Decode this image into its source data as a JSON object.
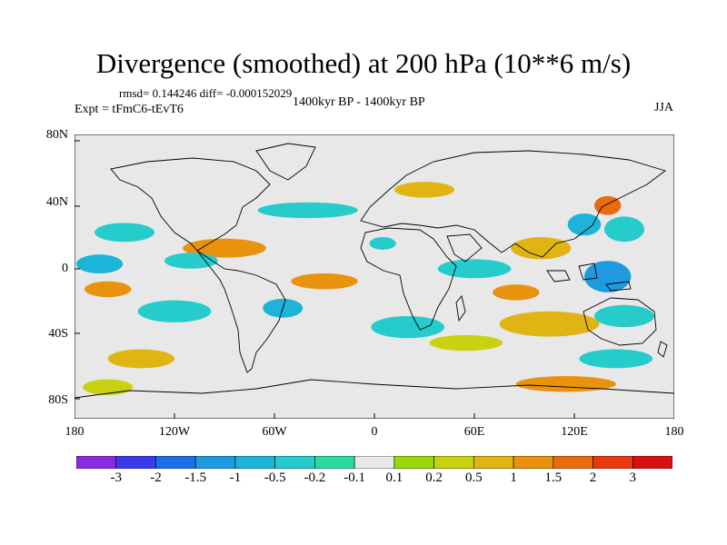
{
  "title": "Divergence (smoothed) at 200 hPa (10**6 m/s)",
  "stats": "rmsd= 0.144246  diff= -0.000152029",
  "experiment": "Expt = tFmC6-tEvT6",
  "period": "1400kyr BP - 1400kyr BP",
  "season": "JJA",
  "lat_labels": [
    "80N",
    "40N",
    "0",
    "40S",
    "80S"
  ],
  "lon_labels": [
    "180",
    "120W",
    "60W",
    "0",
    "60E",
    "120E",
    "180"
  ],
  "colorbar": {
    "labels": [
      "-3",
      "-2",
      "-1.5",
      "-1",
      "-0.5",
      "-0.2",
      "-0.1",
      "0.1",
      "0.2",
      "0.5",
      "1",
      "1.5",
      "2",
      "3"
    ],
    "colors": [
      "#8a2be2",
      "#3a3ae8",
      "#1a6fe8",
      "#1e9ae0",
      "#1cb4d8",
      "#26cbcb",
      "#2bd9a3",
      "#e8e8e8",
      "#9ad60e",
      "#c8d210",
      "#e0b412",
      "#e8920e",
      "#ea6a10",
      "#e83a10",
      "#d81010"
    ]
  },
  "chart_data": {
    "type": "heatmap",
    "variable": "Divergence (smoothed) at 200 hPa",
    "units": "10**6 m/s",
    "projection": "cylindrical equidistant",
    "lon_range": [
      -180,
      180
    ],
    "lat_range": [
      -90,
      90
    ],
    "lon_ticks": [
      -180,
      -120,
      -60,
      0,
      60,
      120,
      180
    ],
    "lat_ticks": [
      80,
      40,
      0,
      -40,
      -80
    ],
    "levels": [
      -3,
      -2,
      -1.5,
      -1,
      -0.5,
      -0.2,
      -0.1,
      0.1,
      0.2,
      0.5,
      1,
      1.5,
      2,
      3
    ],
    "background": "#e8e8e8",
    "features": [
      {
        "lon": 5,
        "lat": 21,
        "rlon": 8,
        "rlat": 4,
        "value": -0.5
      },
      {
        "lon": 140,
        "lat": 0,
        "rlon": 14,
        "rlat": 10,
        "value": -1.5
      },
      {
        "lon": 126,
        "lat": 33,
        "rlon": 10,
        "rlat": 7,
        "value": -1
      },
      {
        "lon": 140,
        "lat": 45,
        "rlon": 8,
        "rlat": 6,
        "value": 1.5
      },
      {
        "lon": 150,
        "lat": 30,
        "rlon": 12,
        "rlat": 8,
        "value": -0.5
      },
      {
        "lon": 100,
        "lat": 18,
        "rlon": 18,
        "rlat": 7,
        "value": 0.5
      },
      {
        "lon": 60,
        "lat": 5,
        "rlon": 22,
        "rlat": 6,
        "value": -0.5
      },
      {
        "lon": 85,
        "lat": -10,
        "rlon": 14,
        "rlat": 5,
        "value": 1
      },
      {
        "lon": -30,
        "lat": -3,
        "rlon": 20,
        "rlat": 5,
        "value": 1
      },
      {
        "lon": -90,
        "lat": 18,
        "rlon": 25,
        "rlat": 6,
        "value": 1
      },
      {
        "lon": -160,
        "lat": -8,
        "rlon": 14,
        "rlat": 5,
        "value": 1
      },
      {
        "lon": -150,
        "lat": 28,
        "rlon": 18,
        "rlat": 6,
        "value": -0.5
      },
      {
        "lon": -110,
        "lat": 10,
        "rlon": 16,
        "rlat": 5,
        "value": -0.5
      },
      {
        "lon": -165,
        "lat": 8,
        "rlon": 14,
        "rlat": 6,
        "value": -1
      },
      {
        "lon": -120,
        "lat": -22,
        "rlon": 22,
        "rlat": 7,
        "value": -0.5
      },
      {
        "lon": -55,
        "lat": -20,
        "rlon": 12,
        "rlat": 6,
        "value": -1
      },
      {
        "lon": 20,
        "lat": -32,
        "rlon": 22,
        "rlat": 7,
        "value": -0.5
      },
      {
        "lon": 105,
        "lat": -30,
        "rlon": 30,
        "rlat": 8,
        "value": 0.5
      },
      {
        "lon": 150,
        "lat": -25,
        "rlon": 18,
        "rlat": 7,
        "value": -0.5
      },
      {
        "lon": 55,
        "lat": -42,
        "rlon": 22,
        "rlat": 5,
        "value": 0.2
      },
      {
        "lon": 145,
        "lat": -52,
        "rlon": 22,
        "rlat": 6,
        "value": -0.5
      },
      {
        "lon": -140,
        "lat": -52,
        "rlon": 20,
        "rlat": 6,
        "value": 0.5
      },
      {
        "lon": 115,
        "lat": -68,
        "rlon": 30,
        "rlat": 5,
        "value": 1
      },
      {
        "lon": -40,
        "lat": 42,
        "rlon": 30,
        "rlat": 5,
        "value": -0.5
      },
      {
        "lon": 30,
        "lat": 55,
        "rlon": 18,
        "rlat": 5,
        "value": 0.5
      },
      {
        "lon": -160,
        "lat": -70,
        "rlon": 15,
        "rlat": 5,
        "value": 0.2
      }
    ]
  }
}
